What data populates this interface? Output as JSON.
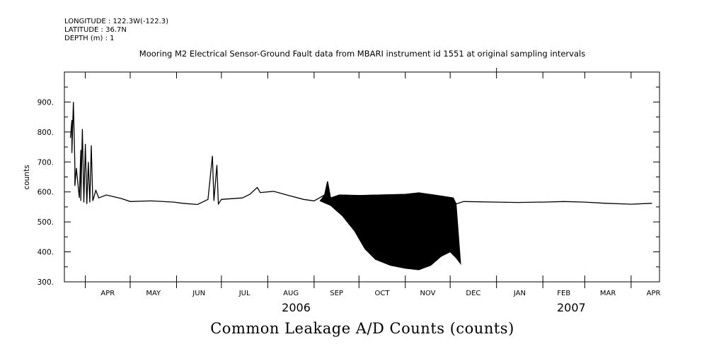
{
  "header": {
    "longitude": "LONGITUDE : 122.3W(-122.3)",
    "latitude": "LATITUDE : 36.7N",
    "depth": "DEPTH (m) : 1"
  },
  "chart_data": {
    "type": "line",
    "title": "Mooring M2 Electrical Sensor-Ground Fault data from MBARI instrument id 1551 at original sampling intervals",
    "xlabel": "Common Leakage A/D Counts (counts)",
    "ylabel": "counts",
    "ylim": [
      300,
      1000
    ],
    "yticks": [
      300,
      400,
      500,
      600,
      700,
      800,
      900
    ],
    "ytick_labels": [
      "300.",
      "400.",
      "500.",
      "600.",
      "700.",
      "800.",
      "900."
    ],
    "x_months": [
      "APR",
      "MAY",
      "JUN",
      "JUL",
      "AUG",
      "SEP",
      "OCT",
      "NOV",
      "DEC",
      "JAN",
      "FEB",
      "MAR",
      "APR"
    ],
    "x_years": [
      "2006",
      "2007"
    ],
    "xlim": [
      "2006-03-18",
      "2007-04-20"
    ],
    "grid": false,
    "series": [
      {
        "name": "",
        "type": "line",
        "color": "#000000",
        "points": [
          [
            "2006-03-22",
            780
          ],
          [
            "2006-03-23",
            840
          ],
          [
            "2006-03-23",
            730
          ],
          [
            "2006-03-24",
            900
          ],
          [
            "2006-03-25",
            690
          ],
          [
            "2006-03-25",
            620
          ],
          [
            "2006-03-26",
            680
          ],
          [
            "2006-03-28",
            580
          ],
          [
            "2006-03-29",
            740
          ],
          [
            "2006-03-29",
            570
          ],
          [
            "2006-03-30",
            810
          ],
          [
            "2006-03-31",
            565
          ],
          [
            "2006-04-01",
            760
          ],
          [
            "2006-04-02",
            560
          ],
          [
            "2006-04-03",
            700
          ],
          [
            "2006-04-04",
            565
          ],
          [
            "2006-04-05",
            755
          ],
          [
            "2006-04-06",
            570
          ],
          [
            "2006-04-08",
            605
          ],
          [
            "2006-04-10",
            580
          ],
          [
            "2006-04-15",
            590
          ],
          [
            "2006-04-25",
            578
          ],
          [
            "2006-05-01",
            568
          ],
          [
            "2006-05-15",
            570
          ],
          [
            "2006-05-30",
            566
          ],
          [
            "2006-06-05",
            562
          ],
          [
            "2006-06-15",
            558
          ],
          [
            "2006-06-22",
            575
          ],
          [
            "2006-06-25",
            720
          ],
          [
            "2006-06-26",
            570
          ],
          [
            "2006-06-28",
            690
          ],
          [
            "2006-06-29",
            560
          ],
          [
            "2006-07-01",
            575
          ],
          [
            "2006-07-15",
            580
          ],
          [
            "2006-07-20",
            592
          ],
          [
            "2006-07-25",
            615
          ],
          [
            "2006-07-27",
            598
          ],
          [
            "2006-08-05",
            602
          ],
          [
            "2006-08-15",
            588
          ],
          [
            "2006-08-25",
            575
          ],
          [
            "2006-09-01",
            570
          ],
          [
            "2006-09-08",
            590
          ],
          [
            "2006-09-10",
            635
          ],
          [
            "2006-09-12",
            580
          ],
          [
            "2006-09-18",
            590
          ],
          [
            "2006-10-01",
            588
          ],
          [
            "2006-11-01",
            592
          ],
          [
            "2006-11-10",
            597
          ],
          [
            "2006-11-20",
            590
          ],
          [
            "2006-12-03",
            580
          ],
          [
            "2006-12-05",
            560
          ],
          [
            "2006-12-10",
            568
          ],
          [
            "2007-01-01",
            566
          ],
          [
            "2007-01-15",
            565
          ],
          [
            "2007-02-01",
            566
          ],
          [
            "2007-02-15",
            568
          ],
          [
            "2007-03-01",
            566
          ],
          [
            "2007-03-15",
            562
          ],
          [
            "2007-04-01",
            559
          ],
          [
            "2007-04-15",
            562
          ]
        ]
      },
      {
        "name": "",
        "type": "lower envelope",
        "color": "#000000",
        "points": [
          [
            "2006-09-05",
            570
          ],
          [
            "2006-09-12",
            555
          ],
          [
            "2006-09-20",
            520
          ],
          [
            "2006-09-28",
            470
          ],
          [
            "2006-10-05",
            410
          ],
          [
            "2006-10-12",
            375
          ],
          [
            "2006-10-22",
            355
          ],
          [
            "2006-11-01",
            345
          ],
          [
            "2006-11-10",
            340
          ],
          [
            "2006-11-18",
            355
          ],
          [
            "2006-11-25",
            385
          ],
          [
            "2006-12-01",
            400
          ],
          [
            "2006-12-05",
            380
          ],
          [
            "2006-12-08",
            360
          ]
        ]
      }
    ]
  }
}
